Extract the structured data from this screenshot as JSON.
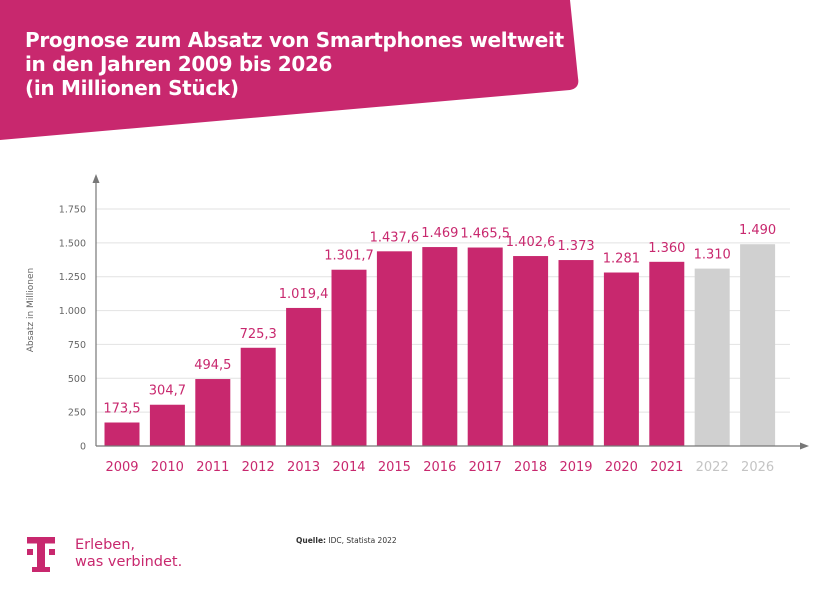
{
  "header": {
    "title_lines": [
      "Prognose zum Absatz von Smartphones weltweit",
      "in den Jahren 2009 bis 2026",
      "(in Millionen Stück)"
    ]
  },
  "colors": {
    "brand_magenta": "#c8286e",
    "forecast_gray": "#d0d0d0",
    "forecast_label_gray": "#c4c4c4",
    "axis_gray": "#777777",
    "grid_gray": "#e2e2e2"
  },
  "chart_data": {
    "type": "bar",
    "title": "Prognose zum Absatz von Smartphones weltweit in den Jahren 2009 bis 2026 (in Millionen Stück)",
    "xlabel": "",
    "ylabel": "Absatz in Millionen",
    "ylim": [
      0,
      1750
    ],
    "yticks": [
      0,
      250,
      500,
      750,
      1000,
      1250,
      1500,
      1750
    ],
    "ytick_labels": [
      "0",
      "250",
      "500",
      "750",
      "1.000",
      "1.250",
      "1.500",
      "1.750"
    ],
    "grid": true,
    "categories": [
      "2009",
      "2010",
      "2011",
      "2012",
      "2013",
      "2014",
      "2015",
      "2016",
      "2017",
      "2018",
      "2019",
      "2020",
      "2021",
      "2022",
      "2026"
    ],
    "values": [
      173.5,
      304.7,
      494.5,
      725.3,
      1019.4,
      1301.7,
      1437.6,
      1469,
      1465.5,
      1402.6,
      1373,
      1281,
      1360,
      1310,
      1490
    ],
    "value_labels": [
      "173,5",
      "304,7",
      "494,5",
      "725,3",
      "1.019,4",
      "1.301,7",
      "1.437,6",
      "1.469",
      "1.465,5",
      "1.402,6",
      "1.373",
      "1.281",
      "1.360",
      "1.310",
      "1.490"
    ],
    "forecast": [
      false,
      false,
      false,
      false,
      false,
      false,
      false,
      false,
      false,
      false,
      false,
      false,
      false,
      true,
      true
    ]
  },
  "footer": {
    "slogan_lines": [
      "Erleben,",
      "was verbindet."
    ],
    "source_label": "Quelle:",
    "source_text": " IDC, Statista 2022",
    "logo_icon": "telekom-t-logo-icon"
  }
}
